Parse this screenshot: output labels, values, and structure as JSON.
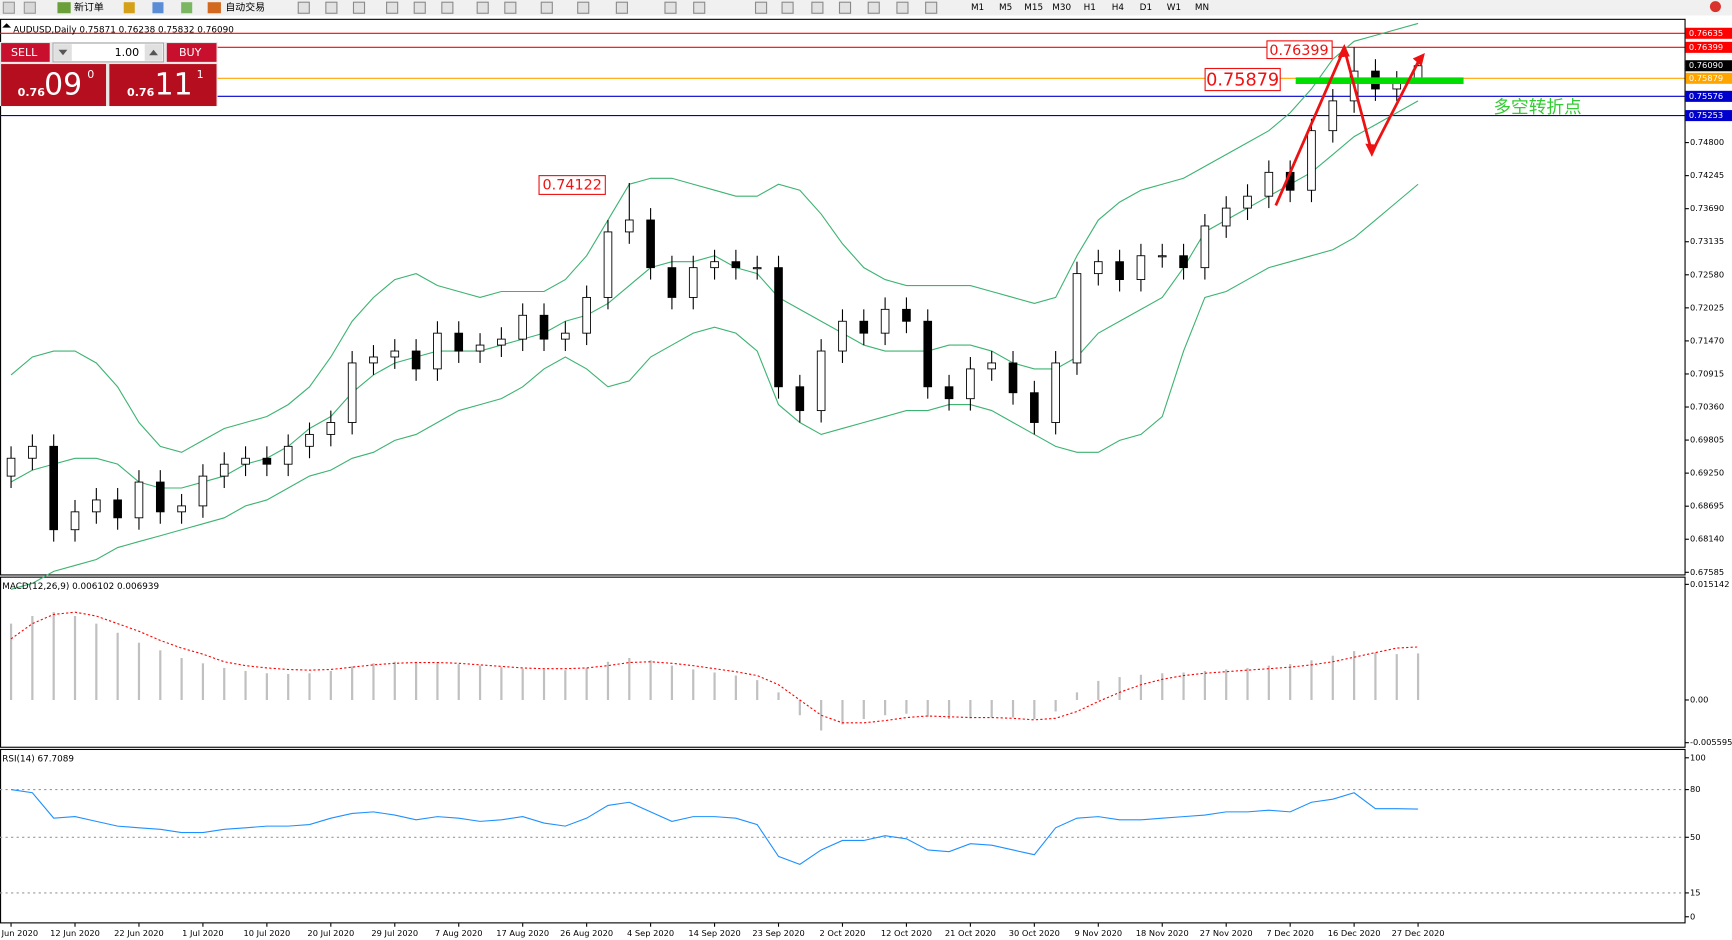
{
  "toolbar": {
    "new_order": "新订单",
    "auto_trading": "自动交易",
    "timeframes": [
      "M1",
      "M5",
      "M15",
      "M30",
      "H1",
      "H4",
      "D1",
      "W1",
      "MN"
    ]
  },
  "trade_panel": {
    "sell": "SELL",
    "volume": "1.00",
    "buy": "BUY",
    "bid_prefix": "0.76",
    "bid_big": "09",
    "bid_pip": "0",
    "ask_prefix": "0.76",
    "ask_big": "11",
    "ask_pip": "1"
  },
  "chart_data": [
    {
      "type": "candlestick",
      "title": "AUDUSD,Daily  0.75871 0.76238 0.75832 0.76090",
      "open": [
        0.692,
        0.695,
        0.697,
        0.683,
        0.686,
        0.688,
        0.685,
        0.691,
        0.686,
        0.687,
        0.692,
        0.694,
        0.695,
        0.694,
        0.697,
        0.699,
        0.701,
        0.711,
        0.712,
        0.713,
        0.71,
        0.716,
        0.713,
        0.714,
        0.715,
        0.719,
        0.715,
        0.716,
        0.722,
        0.733,
        0.735,
        0.727,
        0.722,
        0.727,
        0.728,
        0.727,
        0.727,
        0.707,
        0.703,
        0.713,
        0.718,
        0.716,
        0.72,
        0.718,
        0.707,
        0.705,
        0.71,
        0.711,
        0.706,
        0.701,
        0.711,
        0.726,
        0.728,
        0.725,
        0.729,
        0.729,
        0.727,
        0.734,
        0.737,
        0.739,
        0.743,
        0.74,
        0.75,
        0.755,
        0.76,
        0.757,
        0.75871
      ],
      "high": [
        0.697,
        0.699,
        0.699,
        0.688,
        0.69,
        0.69,
        0.693,
        0.693,
        0.689,
        0.694,
        0.696,
        0.697,
        0.697,
        0.699,
        0.701,
        0.703,
        0.713,
        0.714,
        0.715,
        0.715,
        0.718,
        0.718,
        0.716,
        0.717,
        0.721,
        0.721,
        0.718,
        0.724,
        0.735,
        0.74122,
        0.737,
        0.729,
        0.729,
        0.73,
        0.73,
        0.729,
        0.729,
        0.709,
        0.715,
        0.72,
        0.72,
        0.722,
        0.722,
        0.72,
        0.709,
        0.712,
        0.713,
        0.713,
        0.708,
        0.713,
        0.728,
        0.73,
        0.73,
        0.731,
        0.731,
        0.731,
        0.736,
        0.739,
        0.741,
        0.745,
        0.745,
        0.752,
        0.757,
        0.76399,
        0.762,
        0.76,
        0.76238
      ],
      "low": [
        0.69,
        0.693,
        0.681,
        0.681,
        0.684,
        0.683,
        0.683,
        0.684,
        0.684,
        0.685,
        0.69,
        0.692,
        0.692,
        0.692,
        0.695,
        0.697,
        0.699,
        0.709,
        0.71,
        0.708,
        0.708,
        0.711,
        0.711,
        0.712,
        0.713,
        0.713,
        0.713,
        0.714,
        0.72,
        0.731,
        0.725,
        0.72,
        0.72,
        0.725,
        0.725,
        0.725,
        0.705,
        0.701,
        0.701,
        0.711,
        0.714,
        0.714,
        0.716,
        0.705,
        0.703,
        0.703,
        0.708,
        0.704,
        0.699,
        0.699,
        0.709,
        0.724,
        0.723,
        0.723,
        0.727,
        0.725,
        0.725,
        0.732,
        0.735,
        0.737,
        0.738,
        0.738,
        0.748,
        0.753,
        0.755,
        0.755,
        0.75832
      ],
      "close": [
        0.695,
        0.697,
        0.683,
        0.686,
        0.688,
        0.685,
        0.691,
        0.686,
        0.687,
        0.692,
        0.694,
        0.695,
        0.694,
        0.697,
        0.699,
        0.701,
        0.711,
        0.712,
        0.713,
        0.71,
        0.716,
        0.713,
        0.714,
        0.715,
        0.719,
        0.715,
        0.716,
        0.722,
        0.733,
        0.735,
        0.727,
        0.722,
        0.727,
        0.728,
        0.727,
        0.727,
        0.707,
        0.703,
        0.713,
        0.718,
        0.716,
        0.72,
        0.718,
        0.707,
        0.705,
        0.71,
        0.711,
        0.706,
        0.701,
        0.711,
        0.726,
        0.728,
        0.725,
        0.729,
        0.729,
        0.727,
        0.734,
        0.737,
        0.739,
        0.743,
        0.74,
        0.75,
        0.755,
        0.76,
        0.757,
        0.758,
        0.7609
      ],
      "bollinger": {
        "color": "#3cb371",
        "upper": [
          0.709,
          0.712,
          0.713,
          0.713,
          0.711,
          0.707,
          0.701,
          0.697,
          0.696,
          0.698,
          0.7,
          0.701,
          0.702,
          0.704,
          0.707,
          0.712,
          0.718,
          0.722,
          0.725,
          0.726,
          0.724,
          0.723,
          0.722,
          0.723,
          0.723,
          0.723,
          0.725,
          0.729,
          0.735,
          0.741,
          0.742,
          0.742,
          0.741,
          0.74,
          0.739,
          0.739,
          0.741,
          0.74,
          0.736,
          0.731,
          0.727,
          0.725,
          0.724,
          0.724,
          0.724,
          0.724,
          0.723,
          0.722,
          0.721,
          0.722,
          0.729,
          0.735,
          0.738,
          0.74,
          0.741,
          0.742,
          0.744,
          0.746,
          0.748,
          0.75,
          0.753,
          0.757,
          0.762,
          0.765,
          0.766,
          0.767,
          0.768
        ],
        "middle": [
          0.691,
          0.693,
          0.694,
          0.695,
          0.695,
          0.694,
          0.691,
          0.69,
          0.69,
          0.691,
          0.692,
          0.694,
          0.695,
          0.697,
          0.7,
          0.702,
          0.706,
          0.709,
          0.711,
          0.712,
          0.713,
          0.713,
          0.713,
          0.714,
          0.715,
          0.716,
          0.718,
          0.719,
          0.721,
          0.724,
          0.727,
          0.728,
          0.728,
          0.729,
          0.727,
          0.726,
          0.722,
          0.72,
          0.718,
          0.716,
          0.714,
          0.713,
          0.713,
          0.713,
          0.714,
          0.714,
          0.713,
          0.711,
          0.71,
          0.71,
          0.712,
          0.716,
          0.718,
          0.72,
          0.722,
          0.727,
          0.733,
          0.735,
          0.737,
          0.739,
          0.741,
          0.743,
          0.746,
          0.749,
          0.751,
          0.753,
          0.755
        ],
        "lower": [
          0.673,
          0.674,
          0.676,
          0.677,
          0.678,
          0.68,
          0.681,
          0.682,
          0.683,
          0.684,
          0.685,
          0.687,
          0.688,
          0.69,
          0.692,
          0.693,
          0.695,
          0.696,
          0.698,
          0.699,
          0.701,
          0.703,
          0.704,
          0.705,
          0.707,
          0.71,
          0.712,
          0.71,
          0.707,
          0.708,
          0.712,
          0.714,
          0.716,
          0.717,
          0.716,
          0.713,
          0.704,
          0.701,
          0.699,
          0.7,
          0.701,
          0.702,
          0.703,
          0.703,
          0.704,
          0.704,
          0.703,
          0.701,
          0.699,
          0.697,
          0.696,
          0.696,
          0.698,
          0.699,
          0.702,
          0.713,
          0.722,
          0.723,
          0.725,
          0.727,
          0.728,
          0.729,
          0.73,
          0.732,
          0.735,
          0.738,
          0.741
        ]
      },
      "ylim": [
        0.6755,
        0.7686
      ],
      "yticks": [
        {
          "value": 0.748,
          "label": "0.74800"
        },
        {
          "value": 0.74245,
          "label": "0.74245"
        },
        {
          "value": 0.7369,
          "label": "0.73690"
        },
        {
          "value": 0.73135,
          "label": "0.73135"
        },
        {
          "value": 0.7258,
          "label": "0.72580"
        },
        {
          "value": 0.72025,
          "label": "0.72025"
        },
        {
          "value": 0.7147,
          "label": "0.71470"
        },
        {
          "value": 0.70915,
          "label": "0.70915"
        },
        {
          "value": 0.7036,
          "label": "0.70360"
        },
        {
          "value": 0.69805,
          "label": "0.69805"
        },
        {
          "value": 0.6925,
          "label": "0.69250"
        },
        {
          "value": 0.68695,
          "label": "0.68695"
        },
        {
          "value": 0.6814,
          "label": "0.68140"
        },
        {
          "value": 0.67585,
          "label": "0.67585"
        }
      ],
      "levels": [
        {
          "value": 0.76635,
          "label": "0.76635",
          "color": "#ff0000"
        },
        {
          "value": 0.76399,
          "label": "0.76399",
          "color": "#ff0000"
        },
        {
          "value": 0.75879,
          "label": "0.75879",
          "color": "#ffa500"
        },
        {
          "value": 0.75576,
          "label": "0.75576",
          "color": "#0000cd"
        },
        {
          "value": 0.75253,
          "label": "0.75253",
          "color": "#0000cd"
        }
      ],
      "bid_tag": {
        "value": 0.7609,
        "label": "0.76090"
      },
      "annotations": [
        "0.76399",
        "0.75879",
        "0.74122",
        "多空转折点"
      ]
    },
    {
      "type": "macd",
      "title": "MACD(12,26,9) 0.006102 0.006939",
      "histogram": [
        0.01,
        0.011,
        0.0115,
        0.011,
        0.01,
        0.0088,
        0.0075,
        0.0065,
        0.0055,
        0.0048,
        0.0042,
        0.0038,
        0.0035,
        0.0034,
        0.0035,
        0.0038,
        0.0044,
        0.0048,
        0.005,
        0.005,
        0.0049,
        0.0047,
        0.0045,
        0.0043,
        0.0041,
        0.004,
        0.0039,
        0.0042,
        0.005,
        0.0055,
        0.0052,
        0.0045,
        0.004,
        0.0036,
        0.0032,
        0.0026,
        0.001,
        -0.002,
        -0.004,
        -0.0032,
        -0.0025,
        -0.002,
        -0.0018,
        -0.0022,
        -0.0025,
        -0.0024,
        -0.0023,
        -0.0023,
        -0.0025,
        -0.0015,
        0.001,
        0.0025,
        0.003,
        0.0033,
        0.0035,
        0.0036,
        0.0038,
        0.004,
        0.0042,
        0.0045,
        0.0047,
        0.0052,
        0.0058,
        0.0064,
        0.0062,
        0.006,
        0.006102
      ],
      "signal": [
        0.008,
        0.01,
        0.0112,
        0.0115,
        0.011,
        0.01,
        0.009,
        0.0078,
        0.0068,
        0.006,
        0.005,
        0.0045,
        0.0042,
        0.004,
        0.0039,
        0.004,
        0.0043,
        0.0046,
        0.0048,
        0.0049,
        0.0049,
        0.0048,
        0.0046,
        0.0044,
        0.0042,
        0.0041,
        0.0041,
        0.0042,
        0.0045,
        0.0049,
        0.005,
        0.0048,
        0.0045,
        0.0041,
        0.0037,
        0.0032,
        0.002,
        0.0,
        -0.002,
        -0.003,
        -0.003,
        -0.0027,
        -0.0023,
        -0.0021,
        -0.0022,
        -0.0023,
        -0.0023,
        -0.0024,
        -0.0026,
        -0.0024,
        -0.0015,
        -0.0002,
        0.001,
        0.002,
        0.0027,
        0.0032,
        0.0035,
        0.0037,
        0.0039,
        0.0041,
        0.0043,
        0.0046,
        0.005,
        0.0056,
        0.0062,
        0.0068,
        0.006939
      ],
      "hist_color": "#c0c0c0",
      "signal_color": "#ff0000",
      "ylim": [
        -0.00612,
        0.016016
      ],
      "yticks": [
        0.015142,
        {
          "value": 0,
          "label": "0.00"
        },
        -0.005595
      ]
    },
    {
      "type": "line",
      "title": "RSI(14) 67.7089",
      "categories": [
        "Jun 2020",
        null,
        null,
        "12 Jun 2020",
        null,
        null,
        "22 Jun 2020",
        null,
        null,
        "1 Jul 2020",
        null,
        null,
        "10 Jul 2020",
        null,
        null,
        "20 Jul 2020",
        null,
        null,
        "29 Jul 2020",
        null,
        null,
        "7 Aug 2020",
        null,
        null,
        "17 Aug 2020",
        null,
        null,
        "26 Aug 2020",
        null,
        null,
        "4 Sep 2020",
        null,
        null,
        "14 Sep 2020",
        null,
        null,
        "23 Sep 2020",
        null,
        null,
        "2 Oct 2020",
        null,
        null,
        "12 Oct 2020",
        null,
        null,
        "21 Oct 2020",
        null,
        null,
        "30 Oct 2020",
        null,
        null,
        "9 Nov 2020",
        null,
        null,
        "18 Nov 2020",
        null,
        null,
        "27 Nov 2020",
        null,
        null,
        "7 Dec 2020",
        null,
        null,
        "16 Dec 2020",
        null,
        null,
        "27 Dec 2020"
      ],
      "values": [
        80,
        78,
        62,
        63,
        60,
        57,
        56,
        55,
        53,
        53,
        55,
        56,
        57,
        57,
        58,
        62,
        65,
        66,
        64,
        61,
        63,
        62,
        60,
        61,
        63,
        59,
        57,
        62,
        70,
        72,
        66,
        60,
        63,
        63,
        62,
        58,
        38,
        33,
        42,
        48,
        48,
        51,
        49,
        42,
        41,
        46,
        45,
        42,
        39,
        56,
        62,
        63,
        61,
        61,
        62,
        63,
        64,
        66,
        66,
        67,
        66,
        72,
        74,
        78,
        68,
        68,
        67.7089
      ],
      "color": "#1e90ff",
      "ylim": [
        -3.5,
        104.9
      ],
      "yticks": [
        100,
        80,
        50,
        15,
        0
      ],
      "level_lines": [
        80,
        50,
        15
      ]
    }
  ]
}
